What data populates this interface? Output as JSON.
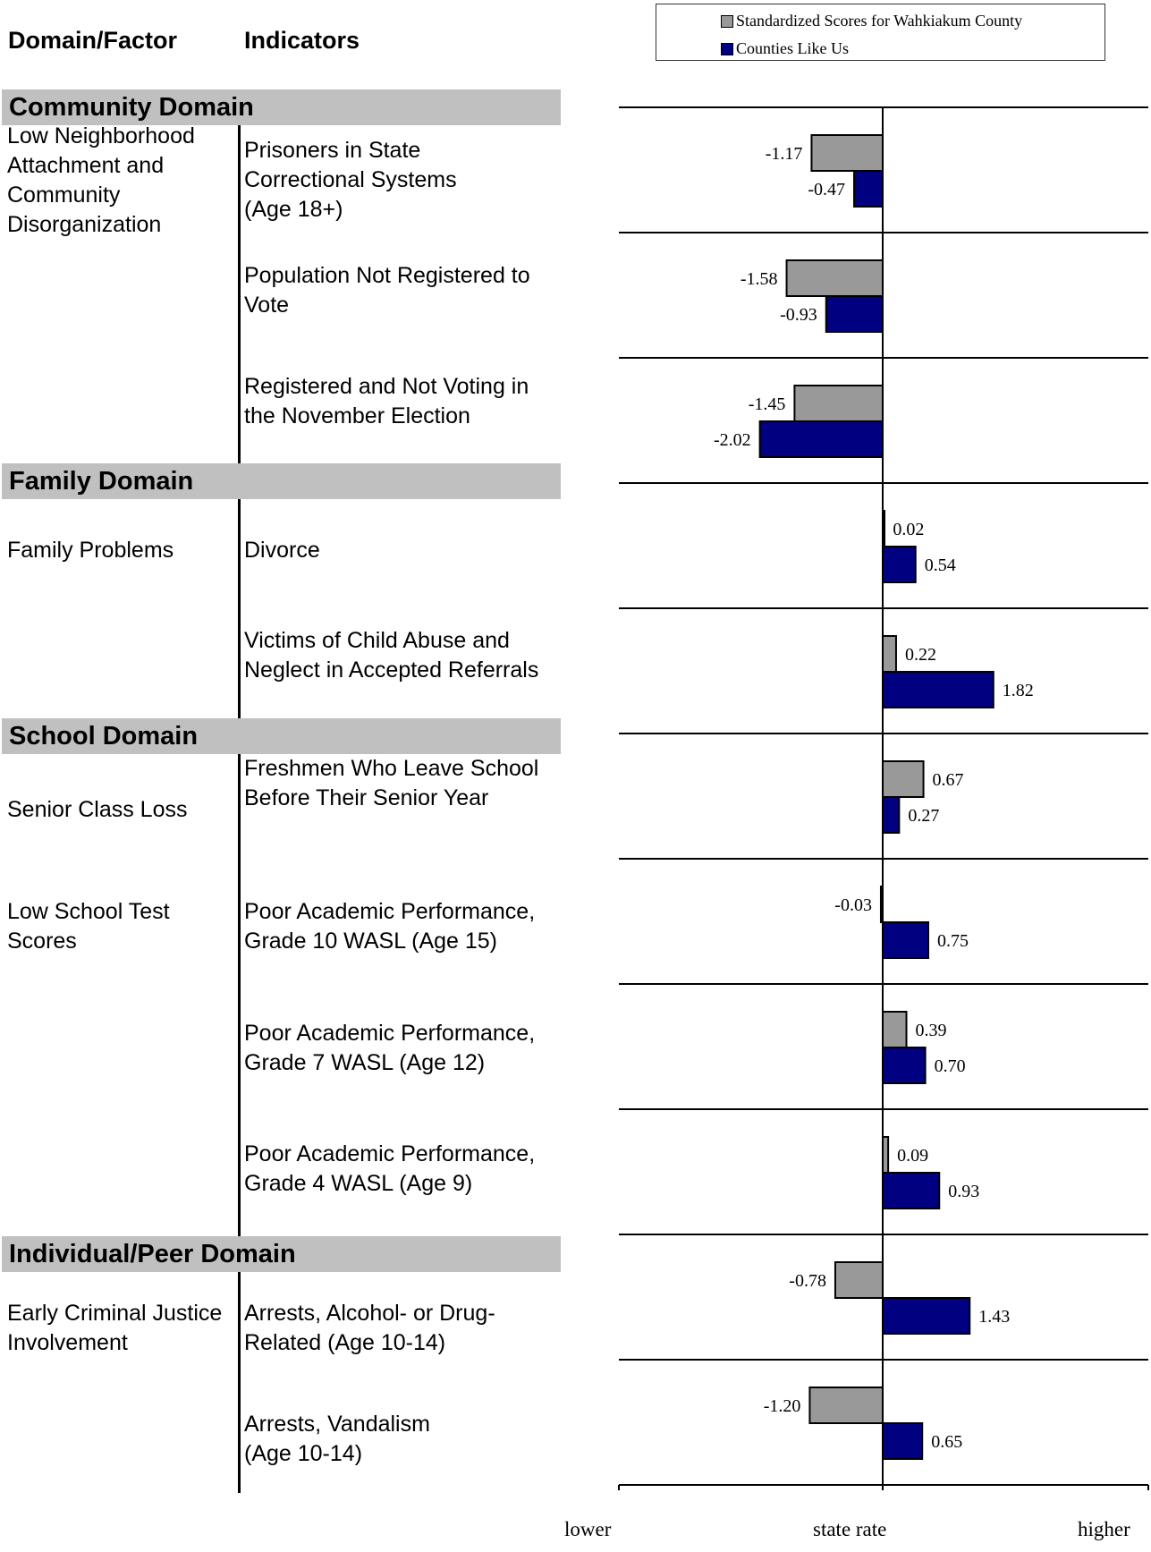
{
  "headers": {
    "domain_factor": "Domain/Factor",
    "indicators": "Indicators"
  },
  "legend": {
    "county": "Standardized Scores for Wahkiakum County",
    "peers": "Counties Like Us"
  },
  "colors": {
    "county": "#999999",
    "peers": "#000080",
    "band": "#c0c0c0"
  },
  "domains": [
    "Community Domain",
    "Family Domain",
    "School Domain",
    "Individual/Peer Domain"
  ],
  "factors": [
    "Low Neighborhood\nAttachment and\nCommunity\nDisorganization",
    "Family Problems",
    "Senior Class Loss",
    "Low School Test\nScores",
    "Early Criminal Justice\nInvolvement"
  ],
  "indicators": [
    "Prisoners in State\nCorrectional Systems\n(Age 18+)",
    "Population Not Registered to\nVote",
    "Registered and Not Voting in\nthe November Election",
    "Divorce",
    "Victims of Child Abuse and\nNeglect in Accepted Referrals",
    "Freshmen Who Leave School\nBefore Their Senior Year",
    "Poor Academic Performance,\nGrade 10  WASL (Age 15)",
    "Poor Academic Performance,\nGrade 7  WASL (Age 12)",
    "Poor Academic Performance,\nGrade 4  WASL (Age 9)",
    "Arrests, Alcohol- or Drug-\nRelated (Age 10-14)",
    "Arrests, Vandalism\n(Age 10-14)"
  ],
  "axis_labels": {
    "lower": "lower",
    "center": "state rate",
    "higher": "higher"
  },
  "chart_data": {
    "type": "bar",
    "orientation": "horizontal",
    "categories": [
      "Prisoners in State Correctional Systems (Age 18+)",
      "Population Not Registered to Vote",
      "Registered and Not Voting in the November Election",
      "Divorce",
      "Victims of Child Abuse and Neglect in Accepted Referrals",
      "Freshmen Who Leave School Before Their Senior Year",
      "Poor Academic Performance, Grade 10  WASL (Age 15)",
      "Poor Academic Performance, Grade 7  WASL (Age 12)",
      "Poor Academic Performance, Grade 4  WASL (Age 9)",
      "Arrests, Alcohol- or Drug-Related (Age 10-14)",
      "Arrests, Vandalism (Age 10-14)"
    ],
    "series": [
      {
        "name": "Standardized Scores for Wahkiakum County",
        "values": [
          -1.17,
          -1.58,
          -1.45,
          0.02,
          0.22,
          0.67,
          -0.03,
          0.39,
          0.09,
          -0.78,
          -1.2
        ],
        "labels": [
          "-1.17",
          "-1.58",
          "-1.45",
          "0.02",
          "0.22",
          "0.67",
          "-0.03",
          "0.39",
          "0.09",
          "-0.78",
          "-1.20"
        ]
      },
      {
        "name": "Counties Like Us",
        "values": [
          -0.47,
          -0.93,
          -2.02,
          0.54,
          1.82,
          0.27,
          0.75,
          0.7,
          0.93,
          1.43,
          0.65
        ],
        "labels": [
          "-0.47",
          "-0.93",
          "-2.02",
          "0.54",
          "1.82",
          "0.27",
          "0.75",
          "0.70",
          "0.93",
          "1.43",
          "0.65"
        ]
      }
    ],
    "xlim": [
      -4,
      4
    ],
    "legend": "top-right"
  }
}
